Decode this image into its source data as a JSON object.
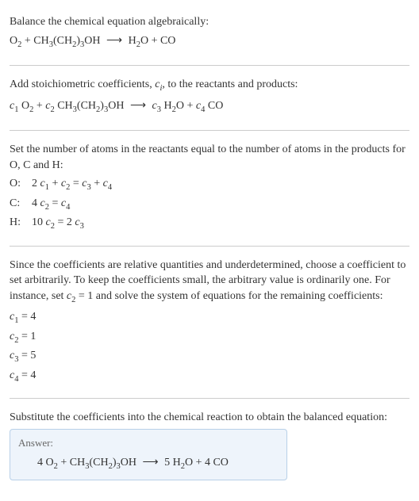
{
  "step1": {
    "title": "Balance the chemical equation algebraically:",
    "lhs_1": "O",
    "lhs_1_sub": "2",
    "plus1": " + CH",
    "lhs_2_sub": "3",
    "lhs_2_paren": "(CH",
    "lhs_2_paren_sub": "2",
    "lhs_2_paren_close": ")",
    "lhs_2_outer_sub": "3",
    "lhs_2_tail": "OH",
    "arrow": "⟶",
    "rhs_1": " H",
    "rhs_1_sub": "2",
    "rhs_1_tail": "O + CO"
  },
  "step2": {
    "title_a": "Add stoichiometric coefficients, ",
    "title_c": "c",
    "title_i": "i",
    "title_b": ", to the reactants and products:",
    "c1": "c",
    "c1_sub": "1",
    "sp1": " O",
    "o2_sub": "2",
    "plus1": " + ",
    "c2": "c",
    "c2_sub": "2",
    "sp2": " CH",
    "ch3_sub": "3",
    "paren_open": "(CH",
    "ch2_sub": "2",
    "paren_close": ")",
    "outer3_sub": "3",
    "oh": "OH",
    "arrow": "⟶",
    "c3": "c",
    "c3_sub": "3",
    "sp3": " H",
    "h2_sub": "2",
    "o_tail": "O + ",
    "c4": "c",
    "c4_sub": "4",
    "co": " CO"
  },
  "step3": {
    "title": "Set the number of atoms in the reactants equal to the number of atoms in the products for O, C and H:",
    "rows": [
      {
        "label": "O:",
        "lhs_a": "2 ",
        "c1": "c",
        "c1s": "1",
        "mid": " + ",
        "c2": "c",
        "c2s": "2",
        "eq": " = ",
        "c3": "c",
        "c3s": "3",
        "plus": " + ",
        "c4": "c",
        "c4s": "4"
      },
      {
        "label": "C:",
        "lhs_a": "4 ",
        "c1": "c",
        "c1s": "2",
        "mid": "",
        "c2": "",
        "c2s": "",
        "eq": " = ",
        "c3": "c",
        "c3s": "4",
        "plus": "",
        "c4": "",
        "c4s": ""
      },
      {
        "label": "H:",
        "lhs_a": "10 ",
        "c1": "c",
        "c1s": "2",
        "mid": "",
        "c2": "",
        "c2s": "",
        "eq": " = 2 ",
        "c3": "c",
        "c3s": "3",
        "plus": "",
        "c4": "",
        "c4s": ""
      }
    ]
  },
  "step4": {
    "text_a": "Since the coefficients are relative quantities and underdetermined, choose a coefficient to set arbitrarily. To keep the coefficients small, the arbitrary value is ordinarily one. For instance, set ",
    "cvar": "c",
    "csub": "2",
    "text_b": " = 1 and solve the system of equations for the remaining coefficients:",
    "coeffs": [
      {
        "c": "c",
        "s": "1",
        "v": " = 4"
      },
      {
        "c": "c",
        "s": "2",
        "v": " = 1"
      },
      {
        "c": "c",
        "s": "3",
        "v": " = 5"
      },
      {
        "c": "c",
        "s": "4",
        "v": " = 4"
      }
    ]
  },
  "step5": {
    "title": "Substitute the coefficients into the chemical reaction to obtain the balanced equation:"
  },
  "answer": {
    "label": "Answer:",
    "p1": "4 O",
    "s1": "2",
    "p2": " + CH",
    "s2": "3",
    "p3": "(CH",
    "s3": "2",
    "p4": ")",
    "s4": "3",
    "p5": "OH",
    "arrow": "⟶",
    "p6": " 5 H",
    "s6": "2",
    "p7": "O + 4 CO"
  },
  "colors": {
    "text": "#333333",
    "divider": "#cccccc",
    "answer_bg": "#eef4fb",
    "answer_border": "#b8d0e8",
    "answer_label": "#666666"
  }
}
